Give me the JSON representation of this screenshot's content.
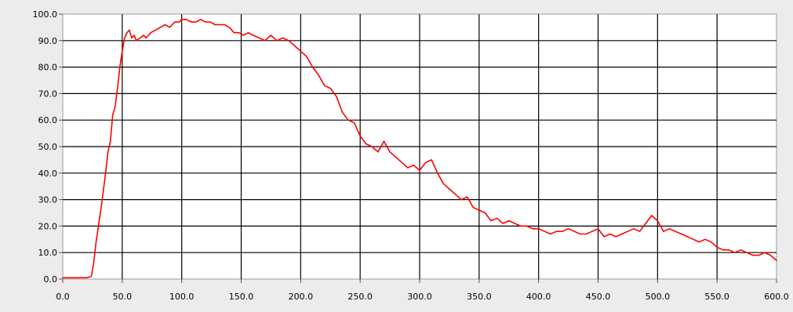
{
  "chart_data": {
    "type": "line",
    "xlim": [
      0,
      600
    ],
    "ylim": [
      0,
      100
    ],
    "grid": true,
    "xticks": [
      0,
      50,
      100,
      150,
      200,
      250,
      300,
      350,
      400,
      450,
      500,
      550,
      600
    ],
    "yticks": [
      0,
      10,
      20,
      30,
      40,
      50,
      60,
      70,
      80,
      90,
      100
    ],
    "xtick_labels": [
      "0.0",
      "50.0",
      "100.0",
      "150.0",
      "200.0",
      "250.0",
      "300.0",
      "350.0",
      "400.0",
      "450.0",
      "500.0",
      "550.0",
      "600.0"
    ],
    "ytick_labels": [
      "0.0",
      "10.0",
      "20.0",
      "30.0",
      "40.0",
      "50.0",
      "60.0",
      "70.0",
      "80.0",
      "90.0",
      "100.0"
    ],
    "colors": {
      "line": "#ff0000",
      "grid": "#000000",
      "plot_background": "#ffffff",
      "page_background": "#ececec"
    },
    "series": [
      {
        "x": [
          0,
          10,
          20,
          24,
          26,
          28,
          30,
          32,
          34,
          36,
          38,
          40,
          42,
          44,
          46,
          48,
          50,
          52,
          54,
          56,
          58,
          60,
          62,
          65,
          68,
          70,
          74,
          78,
          82,
          86,
          90,
          94,
          98,
          100,
          104,
          108,
          112,
          116,
          120,
          124,
          128,
          132,
          136,
          140,
          144,
          148,
          152,
          156,
          160,
          165,
          170,
          175,
          180,
          185,
          190,
          195,
          200,
          205,
          210,
          215,
          220,
          225,
          230,
          235,
          240,
          245,
          250,
          255,
          260,
          265,
          270,
          275,
          280,
          285,
          290,
          295,
          300,
          305,
          310,
          315,
          320,
          325,
          330,
          335,
          340,
          345,
          350,
          355,
          360,
          365,
          370,
          375,
          380,
          385,
          390,
          395,
          400,
          405,
          410,
          415,
          420,
          425,
          430,
          435,
          440,
          445,
          450,
          455,
          460,
          465,
          470,
          475,
          480,
          485,
          490,
          495,
          500,
          505,
          510,
          515,
          520,
          525,
          530,
          535,
          540,
          545,
          550,
          555,
          560,
          565,
          570,
          575,
          580,
          585,
          590,
          595,
          600
        ],
        "y": [
          0.5,
          0.5,
          0.5,
          1,
          6,
          14,
          20,
          26,
          33,
          40,
          48,
          52,
          62,
          65,
          72,
          80,
          86,
          91,
          93,
          94,
          91,
          92,
          90,
          91,
          92,
          91,
          93,
          94,
          95,
          96,
          95,
          97,
          97,
          98,
          98,
          97,
          97,
          98,
          97,
          97,
          96,
          96,
          96,
          95,
          93,
          93,
          92,
          93,
          92,
          91,
          90,
          92,
          90,
          91,
          90,
          88,
          86,
          84,
          80,
          77,
          73,
          72,
          69,
          63,
          60,
          59,
          54,
          51,
          50,
          48,
          52,
          48,
          46,
          44,
          42,
          43,
          41,
          44,
          45,
          40,
          36,
          34,
          32,
          30,
          31,
          27,
          26,
          25,
          22,
          23,
          21,
          22,
          21,
          20,
          20,
          19,
          19,
          18,
          17,
          18,
          18,
          19,
          18,
          17,
          17,
          18,
          19,
          16,
          17,
          16,
          17,
          18,
          19,
          18,
          21,
          24,
          22,
          18,
          19,
          18,
          17,
          16,
          15,
          14,
          15,
          14,
          12,
          11,
          11,
          10,
          11,
          10,
          9,
          9,
          10,
          9,
          7
        ]
      }
    ]
  }
}
